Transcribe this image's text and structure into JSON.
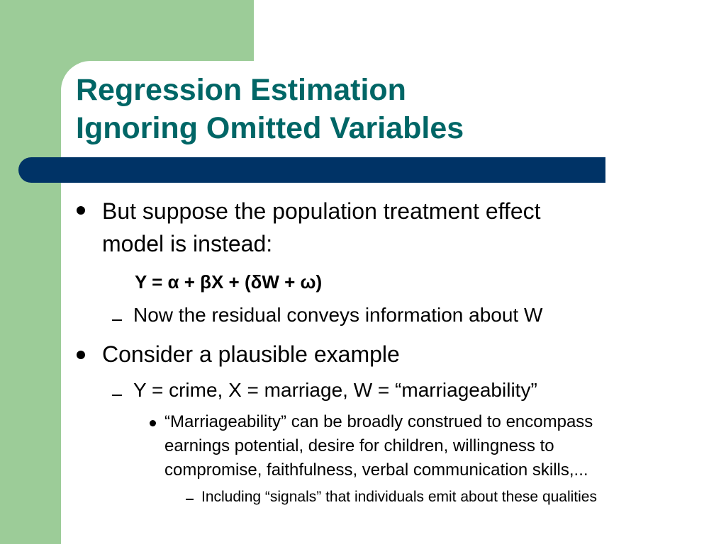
{
  "slide": {
    "title_lines": [
      "Regression Estimation",
      "Ignoring Omitted Variables"
    ],
    "bullet_1": {
      "lines": [
        "But suppose the population treatment effect",
        "model is instead:"
      ],
      "equation": "Y = α + βX + (δW + ω)",
      "sub_1": "Now the residual conveys information about W"
    },
    "bullet_2": {
      "text": "Consider a plausible example",
      "sub_1": "Y = crime, X = marriage, W = “marriageability”",
      "sub_sub": {
        "lines": [
          "“Marriageability” can be broadly construed to encompass",
          "earnings potential, desire for children, willingness to",
          "compromise, faithfulness, verbal communication skills,..."
        ],
        "sub": "Including “signals” that individuals emit about these qualities"
      }
    },
    "colors": {
      "title": "#006666",
      "accent_green": "#9ccc98",
      "title_bar": "#003366",
      "text": "#000000"
    }
  }
}
